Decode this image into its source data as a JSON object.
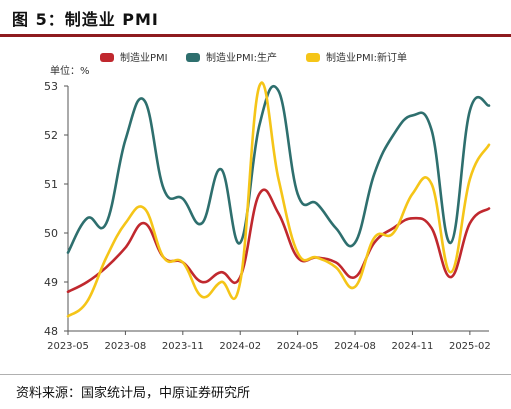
{
  "figure": {
    "title": "图 5：制造业 PMI",
    "source": "资料来源：国家统计局，中原证券研究所"
  },
  "chart_data": {
    "type": "line",
    "unit_label": "单位：%",
    "ylim": [
      48,
      53
    ],
    "yticks": [
      48,
      49,
      50,
      51,
      52,
      53
    ],
    "x": [
      "2023-05",
      "2023-06",
      "2023-07",
      "2023-08",
      "2023-09",
      "2023-10",
      "2023-11",
      "2023-12",
      "2024-01",
      "2024-02",
      "2024-03",
      "2024-04",
      "2024-05",
      "2024-06",
      "2024-07",
      "2024-08",
      "2024-09",
      "2024-10",
      "2024-11",
      "2024-12",
      "2025-01",
      "2025-02",
      "2025-03"
    ],
    "xtick_labels": [
      "2023-05",
      "2023-08",
      "2023-11",
      "2024-02",
      "2024-05",
      "2024-08",
      "2024-11",
      "2025-02"
    ],
    "legend_position": "top",
    "grid": false,
    "series": [
      {
        "name": "制造业PMI",
        "color": "#c0282e",
        "values": [
          48.8,
          49.0,
          49.3,
          49.7,
          50.2,
          49.5,
          49.4,
          49.0,
          49.2,
          49.1,
          50.8,
          50.4,
          49.5,
          49.5,
          49.4,
          49.1,
          49.8,
          50.1,
          50.3,
          50.1,
          49.1,
          50.2,
          50.5
        ]
      },
      {
        "name": "制造业PMI:生产",
        "color": "#2e6f6e",
        "values": [
          49.6,
          50.3,
          50.2,
          51.9,
          52.7,
          50.9,
          50.7,
          50.2,
          51.3,
          49.8,
          52.2,
          52.9,
          50.8,
          50.6,
          50.1,
          49.8,
          51.2,
          52.0,
          52.4,
          52.1,
          49.8,
          52.5,
          52.6
        ]
      },
      {
        "name": "制造业PMI:新订单",
        "color": "#f5c518",
        "values": [
          48.3,
          48.6,
          49.5,
          50.2,
          50.5,
          49.5,
          49.4,
          48.7,
          49.0,
          49.0,
          53.0,
          51.1,
          49.6,
          49.5,
          49.3,
          48.9,
          49.9,
          50.0,
          50.8,
          51.0,
          49.2,
          51.1,
          51.8
        ]
      }
    ]
  }
}
